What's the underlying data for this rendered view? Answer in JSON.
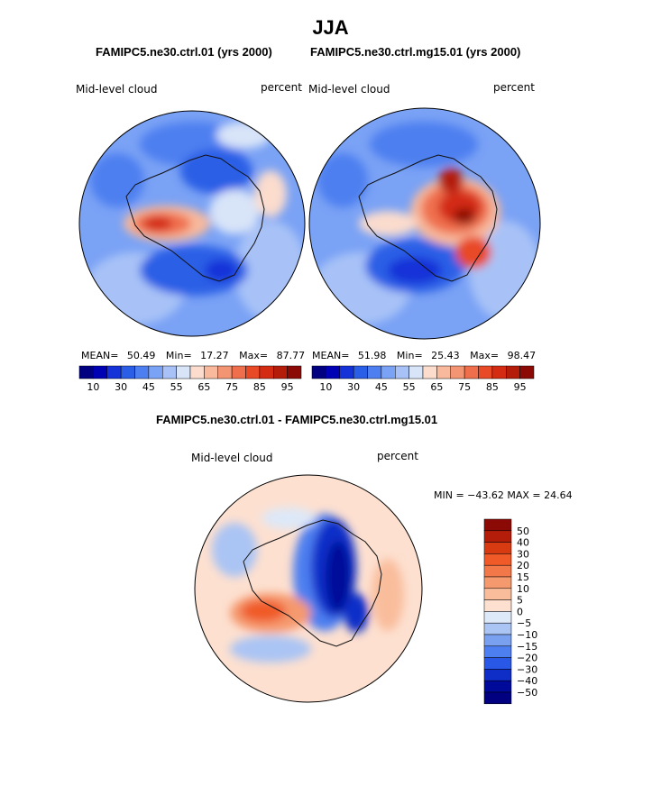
{
  "figure": {
    "season": "JJA",
    "panels": [
      {
        "title": "FAMIPC5.ne30.ctrl.01 (yrs 2000)",
        "variable": "Mid-level cloud",
        "units": "percent",
        "stats": {
          "mean_label": "MEAN=",
          "mean": "50.49",
          "min_label": "Min=",
          "min": "17.27",
          "max_label": "Max=",
          "max": "87.77"
        },
        "colorbar_labels": [
          "10",
          "30",
          "45",
          "55",
          "65",
          "75",
          "85",
          "95"
        ]
      },
      {
        "title": "FAMIPC5.ne30.ctrl.mg15.01 (yrs 2000)",
        "variable": "Mid-level cloud",
        "units": "percent",
        "stats": {
          "mean_label": "MEAN=",
          "mean": "51.98",
          "min_label": "Min=",
          "min": "25.43",
          "max_label": "Max=",
          "max": "98.47"
        },
        "colorbar_labels": [
          "10",
          "30",
          "45",
          "55",
          "65",
          "75",
          "85",
          "95"
        ]
      }
    ],
    "difference": {
      "title": "FAMIPC5.ne30.ctrl.01 - FAMIPC5.ne30.ctrl.mg15.01",
      "variable": "Mid-level cloud",
      "units": "percent",
      "range_text": "MIN = −43.62 MAX =   24.64",
      "colorbar_labels": [
        "50",
        "40",
        "30",
        "20",
        "15",
        "10",
        "5",
        "0",
        "−5",
        "−10",
        "−15",
        "−20",
        "−30",
        "−40",
        "−50"
      ]
    },
    "colors": {
      "field_bins": [
        "#000080",
        "#0000b4",
        "#1432d8",
        "#2a5ee6",
        "#4d7ff0",
        "#7aa2f5",
        "#a8c2f7",
        "#d8e4f8",
        "#fbdccd",
        "#f8b99c",
        "#f39572",
        "#ef6f4d",
        "#e84a28",
        "#d32c12",
        "#b31d0a",
        "#8c0a05"
      ],
      "diff_bins": [
        "#8c0a05",
        "#b31d0a",
        "#d83a12",
        "#f05a28",
        "#f2784a",
        "#f5996e",
        "#f9bd9c",
        "#fde0d0",
        "#dde8f8",
        "#aac4f4",
        "#7aa0f0",
        "#4d7ff0",
        "#2a58e6",
        "#0f2ec8",
        "#000a9a",
        "#000080"
      ]
    }
  }
}
